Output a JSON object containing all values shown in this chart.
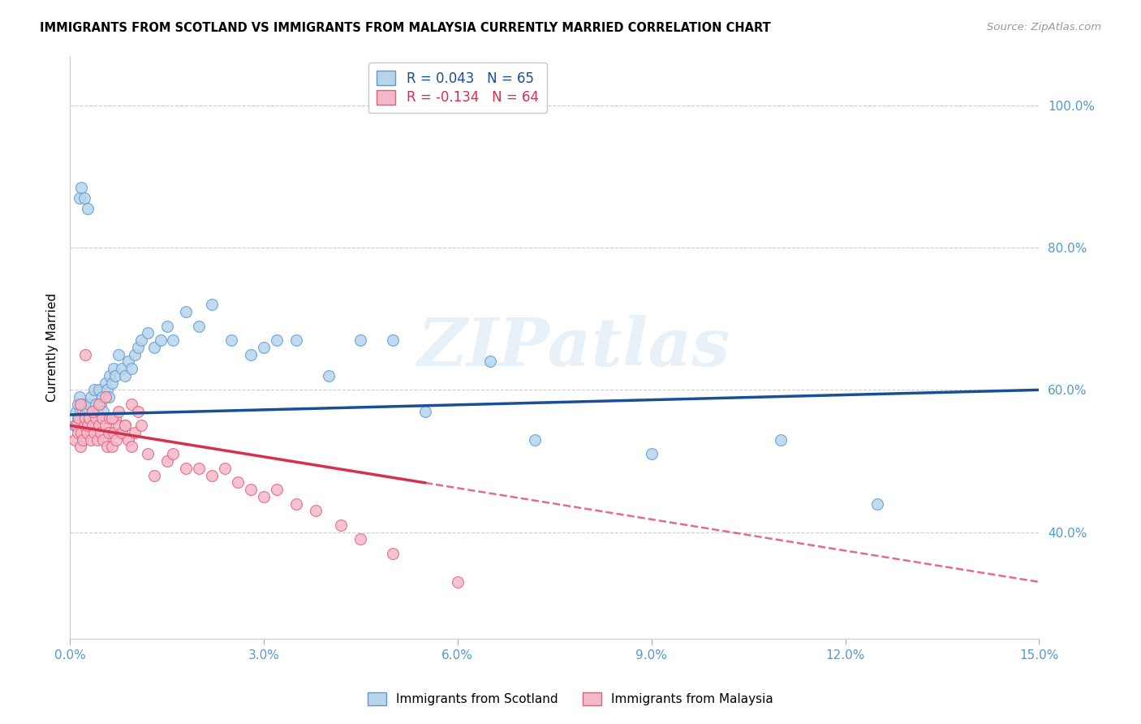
{
  "title": "IMMIGRANTS FROM SCOTLAND VS IMMIGRANTS FROM MALAYSIA CURRENTLY MARRIED CORRELATION CHART",
  "source": "Source: ZipAtlas.com",
  "ylabel": "Currently Married",
  "xlim": [
    0.0,
    15.0
  ],
  "ylim": [
    25.0,
    107.0
  ],
  "xlabel_vals": [
    0.0,
    3.0,
    6.0,
    9.0,
    12.0,
    15.0
  ],
  "ylabel_vals": [
    40.0,
    60.0,
    80.0,
    100.0
  ],
  "scotland_color": "#b8d4ea",
  "malaysia_color": "#f5b8c8",
  "scotland_edge": "#5b9bd5",
  "malaysia_edge": "#e0607a",
  "trendline_scotland_color": "#1a4e96",
  "trendline_malaysia_color": "#d63050",
  "scotland_R": 0.043,
  "scotland_N": 65,
  "malaysia_R": -0.134,
  "malaysia_N": 64,
  "watermark": "ZIPatlas",
  "sc_trend_x0": 0.0,
  "sc_trend_y0": 56.5,
  "sc_trend_x1": 15.0,
  "sc_trend_y1": 60.0,
  "ma_trend_x0": 0.0,
  "ma_trend_y0": 55.0,
  "ma_trend_x1": 15.0,
  "ma_trend_y1": 33.0,
  "ma_solid_end": 5.5,
  "scotland_x": [
    0.08,
    0.1,
    0.12,
    0.13,
    0.15,
    0.16,
    0.17,
    0.18,
    0.2,
    0.22,
    0.23,
    0.25,
    0.27,
    0.28,
    0.3,
    0.32,
    0.35,
    0.38,
    0.4,
    0.42,
    0.45,
    0.48,
    0.5,
    0.52,
    0.55,
    0.58,
    0.6,
    0.62,
    0.65,
    0.68,
    0.7,
    0.75,
    0.8,
    0.85,
    0.9,
    0.95,
    1.0,
    1.05,
    1.1,
    1.2,
    1.3,
    1.4,
    1.5,
    1.6,
    1.8,
    2.0,
    2.2,
    2.5,
    2.8,
    3.0,
    3.2,
    3.5,
    4.0,
    4.5,
    5.0,
    5.5,
    6.5,
    7.2,
    9.0,
    11.0,
    12.5,
    0.15,
    0.18,
    0.22,
    0.28
  ],
  "scotland_y": [
    55.0,
    57.0,
    56.0,
    58.0,
    59.0,
    57.0,
    56.0,
    58.0,
    57.0,
    56.0,
    58.0,
    57.0,
    56.0,
    57.0,
    58.0,
    59.0,
    57.0,
    60.0,
    58.0,
    57.0,
    60.0,
    58.0,
    59.0,
    57.0,
    61.0,
    60.0,
    59.0,
    62.0,
    61.0,
    63.0,
    62.0,
    65.0,
    63.0,
    62.0,
    64.0,
    63.0,
    65.0,
    66.0,
    67.0,
    68.0,
    66.0,
    67.0,
    69.0,
    67.0,
    71.0,
    69.0,
    72.0,
    67.0,
    65.0,
    66.0,
    67.0,
    67.0,
    62.0,
    67.0,
    67.0,
    57.0,
    64.0,
    53.0,
    51.0,
    53.0,
    44.0,
    87.0,
    88.5,
    87.0,
    85.5
  ],
  "malaysia_x": [
    0.08,
    0.1,
    0.12,
    0.14,
    0.16,
    0.18,
    0.2,
    0.22,
    0.24,
    0.26,
    0.28,
    0.3,
    0.32,
    0.35,
    0.38,
    0.4,
    0.42,
    0.45,
    0.48,
    0.5,
    0.52,
    0.55,
    0.58,
    0.6,
    0.62,
    0.65,
    0.68,
    0.7,
    0.72,
    0.75,
    0.8,
    0.85,
    0.9,
    0.95,
    1.0,
    1.1,
    1.2,
    1.3,
    1.5,
    1.6,
    1.8,
    2.0,
    2.2,
    2.4,
    2.6,
    2.8,
    3.0,
    3.2,
    3.5,
    3.8,
    4.2,
    4.5,
    0.16,
    0.24,
    0.35,
    0.45,
    0.55,
    0.65,
    0.75,
    0.85,
    0.95,
    1.05,
    5.0,
    6.0
  ],
  "malaysia_y": [
    53.0,
    55.0,
    54.0,
    56.0,
    52.0,
    54.0,
    53.0,
    55.0,
    56.0,
    54.0,
    55.0,
    56.0,
    53.0,
    55.0,
    54.0,
    56.0,
    53.0,
    55.0,
    54.0,
    56.0,
    53.0,
    55.0,
    52.0,
    54.0,
    56.0,
    52.0,
    54.0,
    56.0,
    53.0,
    55.0,
    54.0,
    55.0,
    53.0,
    52.0,
    54.0,
    55.0,
    51.0,
    48.0,
    50.0,
    51.0,
    49.0,
    49.0,
    48.0,
    49.0,
    47.0,
    46.0,
    45.0,
    46.0,
    44.0,
    43.0,
    41.0,
    39.0,
    58.0,
    65.0,
    57.0,
    58.0,
    59.0,
    56.0,
    57.0,
    55.0,
    58.0,
    57.0,
    37.0,
    33.0
  ]
}
